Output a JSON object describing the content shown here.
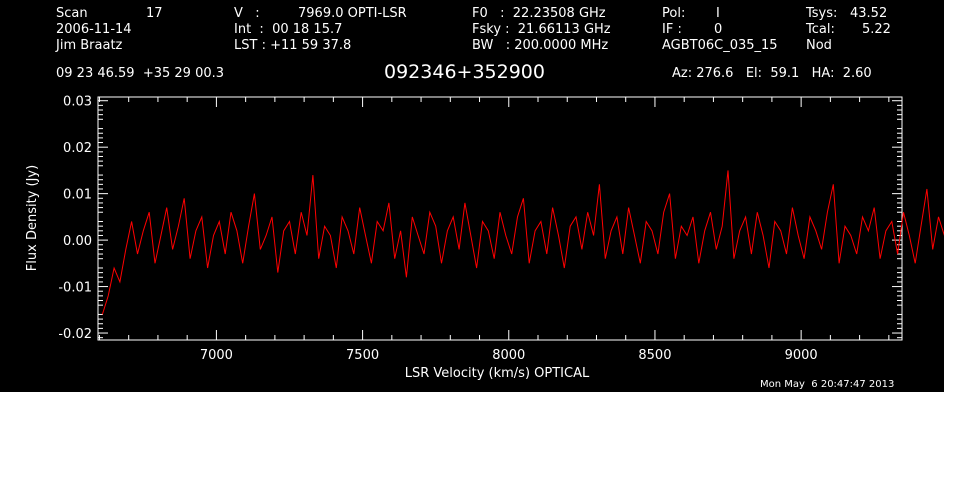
{
  "header": {
    "row1": [
      "Scan",
      "17",
      "V   :",
      "7969.0 OPTI-LSR",
      "F0   :  22.23508 GHz",
      "Pol:",
      "I",
      "Tsys:",
      "43.52"
    ],
    "row2": [
      "2006-11-14",
      "Int  :  00 18 15.7",
      "Fsky :  21.66113 GHz",
      "IF :",
      "0",
      "Tcal:",
      "5.22"
    ],
    "row3": [
      "Jim Braatz",
      "LST : +11 59 37.8",
      "BW   : 200.0000 MHz",
      "AGBT06C_035_15",
      "Nod"
    ],
    "coords": "09 23 46.59  +35 29 00.3",
    "source": "092346+352900",
    "az_el_ha": "Az: 276.6   El:  59.1   HA:  2.60"
  },
  "timestamp": "Mon May  6 20:47:47 2013",
  "chart_data": {
    "type": "line",
    "xlabel": "LSR Velocity (km/s) OPTICAL",
    "ylabel": "Flux Density (Jy)",
    "xlim": [
      6595,
      9345
    ],
    "ylim": [
      -0.0215,
      0.0308
    ],
    "xticks": [
      7000,
      7500,
      8000,
      8500,
      9000
    ],
    "xtick_labels": [
      "7000",
      "7500",
      "8000",
      "8500",
      "9000"
    ],
    "yticks": [
      -0.02,
      -0.01,
      0.0,
      0.01,
      0.02,
      0.03
    ],
    "ytick_labels": [
      "-0.02",
      "-0.01",
      "0.00",
      "0.01",
      "0.02",
      "0.03"
    ],
    "series": [
      {
        "color": "#ff0000",
        "x_start": 6610,
        "x_step": 20,
        "y": [
          -0.016,
          -0.012,
          -0.006,
          -0.009,
          -0.002,
          0.004,
          -0.003,
          0.002,
          0.006,
          -0.005,
          0.001,
          0.007,
          -0.002,
          0.003,
          0.009,
          -0.004,
          0.002,
          0.005,
          -0.006,
          0.001,
          0.004,
          -0.003,
          0.006,
          0.002,
          -0.005,
          0.003,
          0.01,
          -0.002,
          0.001,
          0.005,
          -0.007,
          0.002,
          0.004,
          -0.003,
          0.006,
          0.001,
          0.014,
          -0.004,
          0.003,
          0.001,
          -0.006,
          0.005,
          0.002,
          -0.003,
          0.007,
          0.001,
          -0.005,
          0.004,
          0.002,
          0.008,
          -0.004,
          0.002,
          -0.008,
          0.005,
          0.001,
          -0.003,
          0.006,
          0.003,
          -0.005,
          0.002,
          0.005,
          -0.002,
          0.008,
          0.001,
          -0.006,
          0.004,
          0.002,
          -0.004,
          0.006,
          0.001,
          -0.003,
          0.005,
          0.009,
          -0.005,
          0.002,
          0.004,
          -0.003,
          0.007,
          0.001,
          -0.006,
          0.003,
          0.005,
          -0.002,
          0.006,
          0.001,
          0.012,
          -0.004,
          0.002,
          0.005,
          -0.003,
          0.007,
          0.001,
          -0.005,
          0.004,
          0.002,
          -0.003,
          0.006,
          0.01,
          -0.004,
          0.003,
          0.001,
          0.005,
          -0.005,
          0.002,
          0.006,
          -0.002,
          0.003,
          0.015,
          -0.004,
          0.002,
          0.005,
          -0.003,
          0.006,
          0.001,
          -0.006,
          0.004,
          0.002,
          -0.003,
          0.007,
          0.001,
          -0.004,
          0.005,
          0.002,
          -0.002,
          0.006,
          0.012,
          -0.005,
          0.003,
          0.001,
          -0.003,
          0.005,
          0.002,
          0.007,
          -0.004,
          0.002,
          0.004,
          -0.003,
          0.006,
          0.001,
          -0.005,
          0.003,
          0.011,
          -0.002,
          0.005,
          0.001,
          -0.006,
          0.004,
          0.002,
          -0.003,
          0.007,
          0.001,
          -0.004,
          0.005,
          0.003,
          -0.002,
          0.006,
          0.012,
          -0.005,
          0.002,
          0.004,
          -0.003,
          0.006,
          0.001,
          -0.004,
          0.005,
          0.002,
          -0.003,
          0.007,
          0.001,
          -0.005,
          0.004,
          0.002,
          0.013,
          -0.003,
          0.006,
          0.001,
          -0.006,
          0.004,
          0.003,
          -0.002,
          0.006,
          0.001,
          -0.004,
          0.005,
          0.011,
          -0.003,
          0.007,
          0.002,
          -0.005,
          0.004,
          0.001,
          -0.003,
          0.006,
          0.002,
          -0.004,
          0.005,
          0.001,
          0.012,
          -0.003,
          0.007,
          0.002,
          -0.005,
          0.004,
          0.001,
          -0.002,
          0.006,
          0.003,
          -0.004,
          0.005,
          0.001,
          -0.003,
          0.008,
          0.013,
          -0.004,
          0.003,
          0.001,
          -0.003,
          0.006,
          0.002,
          0.005,
          -0.004,
          0.003,
          0.009,
          -0.003,
          0.006,
          0.002,
          -0.002,
          0.012,
          0.004,
          -0.004,
          0.007,
          0.003,
          0.008,
          0.016,
          0.011,
          0.005,
          0.019,
          0.021
        ]
      }
    ]
  }
}
